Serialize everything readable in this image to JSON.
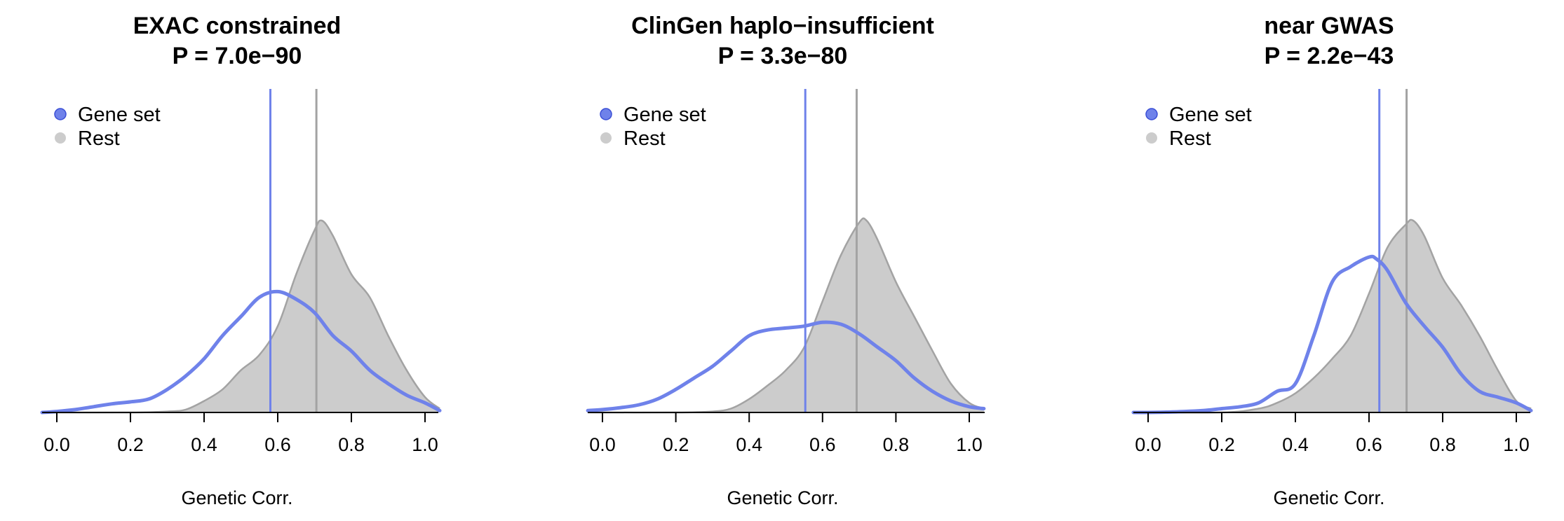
{
  "colors": {
    "gene_set": "#6f82ea",
    "rest_line": "#a3a3a3",
    "rest_fill": "#cccccc",
    "axis": "#000000"
  },
  "chart_data": [
    {
      "type": "area",
      "title": "EXAC constrained",
      "subtitle": "P =  7.0e−90",
      "xlabel": "Genetic Corr.",
      "ylabel": "",
      "xlim": [
        -0.04,
        1.04
      ],
      "ylim": [
        0,
        1.0
      ],
      "xticks": [
        0.0,
        0.2,
        0.4,
        0.6,
        0.8,
        1.0
      ],
      "xtick_labels": [
        "0.0",
        "0.2",
        "0.4",
        "0.6",
        "0.8",
        "1.0"
      ],
      "grid": false,
      "legend": {
        "position": "top-left",
        "entries": [
          "Gene set",
          "Rest"
        ]
      },
      "vlines": {
        "gene_set": 0.58,
        "rest": 0.705
      },
      "series": [
        {
          "name": "Gene set",
          "x": [
            -0.04,
            0.0,
            0.05,
            0.1,
            0.15,
            0.2,
            0.25,
            0.3,
            0.35,
            0.4,
            0.45,
            0.5,
            0.55,
            0.6,
            0.65,
            0.7,
            0.75,
            0.8,
            0.85,
            0.9,
            0.95,
            1.0,
            1.04
          ],
          "y": [
            0.0,
            0.005,
            0.015,
            0.03,
            0.045,
            0.055,
            0.07,
            0.12,
            0.19,
            0.28,
            0.4,
            0.5,
            0.6,
            0.63,
            0.59,
            0.52,
            0.4,
            0.32,
            0.22,
            0.15,
            0.09,
            0.05,
            0.01
          ]
        },
        {
          "name": "Rest",
          "x": [
            -0.04,
            0.2,
            0.3,
            0.35,
            0.4,
            0.45,
            0.5,
            0.55,
            0.6,
            0.65,
            0.7,
            0.72,
            0.75,
            0.8,
            0.85,
            0.9,
            0.95,
            1.0,
            1.04
          ],
          "y": [
            0.0,
            0.0,
            0.005,
            0.015,
            0.06,
            0.12,
            0.22,
            0.3,
            0.45,
            0.72,
            0.95,
            1.0,
            0.92,
            0.72,
            0.6,
            0.4,
            0.22,
            0.08,
            0.02
          ]
        }
      ]
    },
    {
      "type": "area",
      "title": "ClinGen haplo−insufficient",
      "subtitle": "P =  3.3e−80",
      "xlabel": "Genetic Corr.",
      "ylabel": "",
      "xlim": [
        -0.04,
        1.04
      ],
      "ylim": [
        0,
        1.0
      ],
      "xticks": [
        0.0,
        0.2,
        0.4,
        0.6,
        0.8,
        1.0
      ],
      "xtick_labels": [
        "0.0",
        "0.2",
        "0.4",
        "0.6",
        "0.8",
        "1.0"
      ],
      "grid": false,
      "legend": {
        "position": "top-left",
        "entries": [
          "Gene set",
          "Rest"
        ]
      },
      "vlines": {
        "gene_set": 0.553,
        "rest": 0.693
      },
      "series": [
        {
          "name": "Gene set",
          "x": [
            -0.04,
            0.0,
            0.05,
            0.1,
            0.15,
            0.2,
            0.25,
            0.3,
            0.35,
            0.4,
            0.45,
            0.5,
            0.55,
            0.6,
            0.65,
            0.7,
            0.75,
            0.8,
            0.85,
            0.9,
            0.95,
            1.0,
            1.04
          ],
          "y": [
            0.01,
            0.015,
            0.025,
            0.04,
            0.07,
            0.12,
            0.18,
            0.24,
            0.32,
            0.4,
            0.43,
            0.44,
            0.45,
            0.47,
            0.46,
            0.41,
            0.34,
            0.27,
            0.18,
            0.11,
            0.06,
            0.03,
            0.02
          ]
        },
        {
          "name": "Rest",
          "x": [
            -0.04,
            0.2,
            0.3,
            0.35,
            0.4,
            0.45,
            0.5,
            0.55,
            0.6,
            0.65,
            0.7,
            0.72,
            0.75,
            0.8,
            0.85,
            0.9,
            0.95,
            1.0,
            1.04
          ],
          "y": [
            0.0,
            0.0,
            0.005,
            0.02,
            0.07,
            0.14,
            0.22,
            0.34,
            0.58,
            0.82,
            0.99,
            1.0,
            0.9,
            0.68,
            0.5,
            0.32,
            0.15,
            0.05,
            0.02
          ]
        }
      ]
    },
    {
      "type": "area",
      "title": "near GWAS",
      "subtitle": "P =  2.2e−43",
      "xlabel": "Genetic Corr.",
      "ylabel": "",
      "xlim": [
        -0.04,
        1.04
      ],
      "ylim": [
        0,
        1.0
      ],
      "xticks": [
        0.0,
        0.2,
        0.4,
        0.6,
        0.8,
        1.0
      ],
      "xtick_labels": [
        "0.0",
        "0.2",
        "0.4",
        "0.6",
        "0.8",
        "1.0"
      ],
      "grid": false,
      "legend": {
        "position": "top-left",
        "entries": [
          "Gene set",
          "Rest"
        ]
      },
      "vlines": {
        "gene_set": 0.628,
        "rest": 0.702
      },
      "series": [
        {
          "name": "Gene set",
          "x": [
            -0.04,
            0.0,
            0.05,
            0.1,
            0.15,
            0.2,
            0.25,
            0.3,
            0.35,
            0.4,
            0.45,
            0.5,
            0.55,
            0.6,
            0.62,
            0.65,
            0.7,
            0.75,
            0.8,
            0.85,
            0.9,
            0.95,
            1.0,
            1.04
          ],
          "y": [
            0.0,
            0.0,
            0.002,
            0.005,
            0.01,
            0.02,
            0.03,
            0.05,
            0.11,
            0.15,
            0.4,
            0.68,
            0.76,
            0.81,
            0.8,
            0.74,
            0.57,
            0.45,
            0.34,
            0.2,
            0.11,
            0.08,
            0.05,
            0.01
          ]
        },
        {
          "name": "Rest",
          "x": [
            -0.04,
            0.2,
            0.3,
            0.35,
            0.4,
            0.45,
            0.5,
            0.55,
            0.6,
            0.65,
            0.7,
            0.72,
            0.75,
            0.8,
            0.85,
            0.9,
            0.95,
            1.0,
            1.04
          ],
          "y": [
            0.0,
            0.0,
            0.02,
            0.05,
            0.1,
            0.18,
            0.28,
            0.4,
            0.62,
            0.86,
            0.98,
            1.0,
            0.92,
            0.7,
            0.56,
            0.4,
            0.22,
            0.06,
            0.02
          ]
        }
      ]
    }
  ]
}
